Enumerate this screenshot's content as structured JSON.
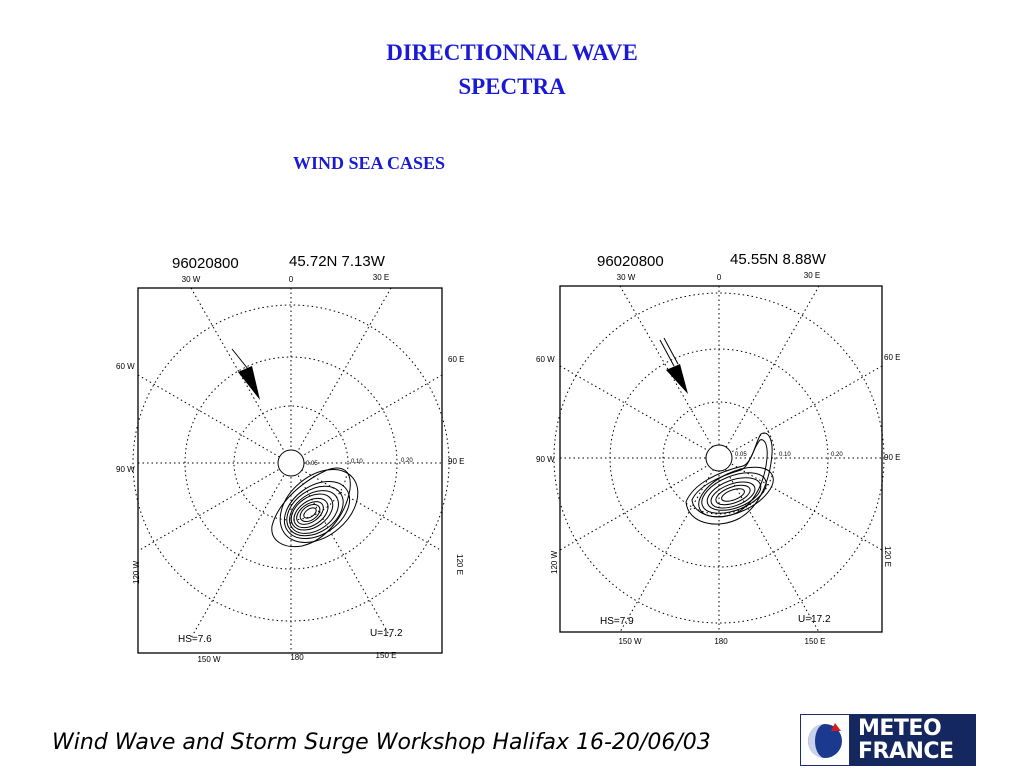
{
  "slide": {
    "title_line1": "DIRECTIONNAL WAVE",
    "title_line2": "SPECTRA",
    "subtitle": "WIND SEA CASES",
    "footer": "Wind Wave and Storm Surge Workshop Halifax 16-20/06/03",
    "logo_line1": "METEO",
    "logo_line2": "FRANCE"
  },
  "colors": {
    "title": "#1a1ad6",
    "logo_background": "#14275e"
  },
  "panels": [
    {
      "date": "96020800",
      "position": "45.72N  7.13W",
      "hs": "HS=7.6",
      "u": "U=17.2",
      "dir_top_left": "30 W",
      "dir_top": "0",
      "dir_top_right": "30 E",
      "dir_upper_left": "60 W",
      "dir_upper_right": "60 E",
      "dir_left": "90 W",
      "dir_right": "90 E",
      "dir_lower_left": "120 W",
      "dir_lower_right": "120 E",
      "dir_bottom_left": "150 W",
      "dir_bottom": "180",
      "dir_bottom_right": "150 E",
      "ring_labels": [
        "0.05",
        "0.10",
        "0.20"
      ]
    },
    {
      "date": "96020800",
      "position": "45.55N  8.88W",
      "hs": "HS=7.9",
      "u": "U=17.2",
      "dir_top_left": "30 W",
      "dir_top": "0",
      "dir_top_right": "30 E",
      "dir_upper_left": "60 W",
      "dir_upper_right": "60 E",
      "dir_left": "90 W",
      "dir_right": "90 E",
      "dir_lower_left": "120 W",
      "dir_lower_right": "120 E",
      "dir_bottom_left": "150 W",
      "dir_bottom": "180",
      "dir_bottom_right": "150 E",
      "ring_labels": [
        "0.05",
        "0.10",
        "0.20"
      ]
    }
  ]
}
